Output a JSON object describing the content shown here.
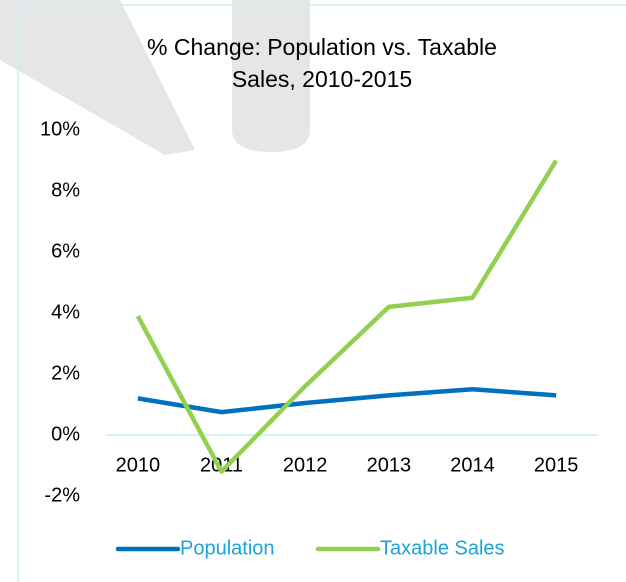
{
  "chart_data": {
    "type": "line",
    "title": "% Change: Population vs. Taxable Sales, 2010-2015",
    "title_lines": [
      "% Change: Population vs. Taxable",
      "Sales, 2010-2015"
    ],
    "categories": [
      "2010",
      "2011",
      "2012",
      "2013",
      "2014",
      "2015"
    ],
    "series": [
      {
        "name": "Population",
        "color": "#0070c0",
        "values": [
          1.2,
          0.75,
          1.05,
          1.3,
          1.5,
          1.3
        ]
      },
      {
        "name": "Taxable Sales",
        "color": "#92d050",
        "values": [
          3.9,
          -1.2,
          1.6,
          4.2,
          4.5,
          9.0
        ]
      }
    ],
    "ylim": [
      -2,
      10
    ],
    "yticks": [
      {
        "value": -2,
        "label": "-2%"
      },
      {
        "value": 0,
        "label": "0%"
      },
      {
        "value": 2,
        "label": "2%"
      },
      {
        "value": 4,
        "label": "4%"
      },
      {
        "value": 6,
        "label": "6%"
      },
      {
        "value": 8,
        "label": "8%"
      },
      {
        "value": 10,
        "label": "10%"
      }
    ],
    "grid": false,
    "legend": "bottom"
  }
}
